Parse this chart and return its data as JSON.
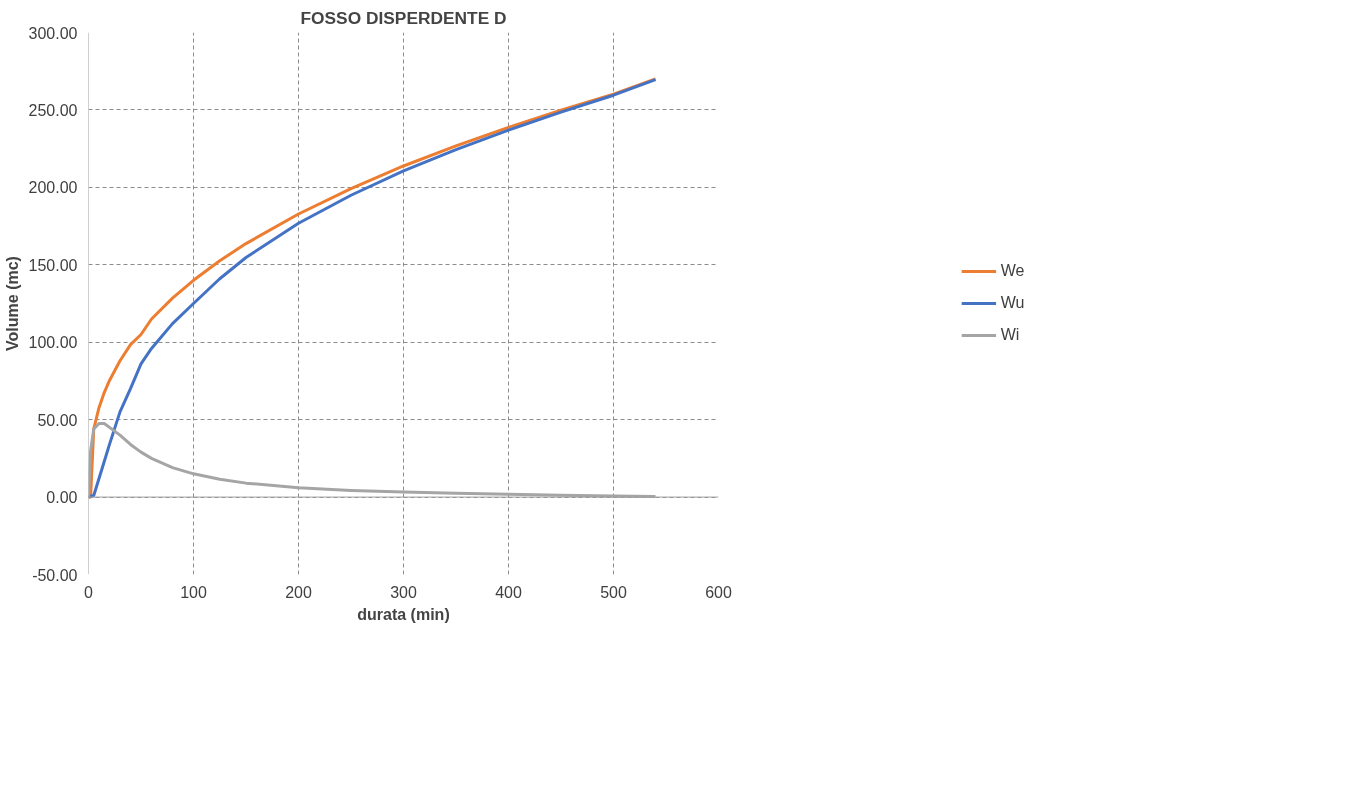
{
  "chart_data": {
    "type": "line",
    "title": "FOSSO DISPERDENTE D",
    "xlabel": "durata (min)",
    "ylabel": "Volume (mc)",
    "x": [
      0,
      2,
      5,
      10,
      15,
      20,
      30,
      40,
      50,
      60,
      80,
      100,
      125,
      150,
      200,
      250,
      300,
      350,
      400,
      450,
      500,
      540
    ],
    "series": [
      {
        "name": "We",
        "color": "#ed7d31",
        "values": [
          0,
          null,
          44,
          57.7,
          67.5,
          75.3,
          88,
          98.4,
          105,
          115,
          128.5,
          140,
          152.6,
          163.7,
          182.8,
          199.2,
          213.8,
          226.8,
          238.7,
          249.8,
          260.2,
          270
        ]
      },
      {
        "name": "Wu",
        "color": "#4472c4",
        "values": [
          0,
          0.5,
          1,
          12,
          23,
          34,
          55,
          70,
          86,
          96,
          112,
          125,
          141,
          154.7,
          176.8,
          194.9,
          210.6,
          224.4,
          236.9,
          248.6,
          259.5,
          269.6
        ]
      },
      {
        "name": "Wi",
        "color": "#a5a5a5",
        "values": [
          0,
          30,
          44,
          47.5,
          47.5,
          45,
          40,
          34,
          29,
          25,
          19,
          15,
          11.5,
          9,
          6,
          4.3,
          3.2,
          2.4,
          1.8,
          1.2,
          0.7,
          0.4
        ]
      }
    ],
    "xlim": [
      0,
      600
    ],
    "xticks": [
      0,
      100,
      200,
      300,
      400,
      500,
      600
    ],
    "ylim": [
      -50,
      300
    ],
    "yticks": [
      {
        "value": -50,
        "label": "-50.00"
      },
      {
        "value": 0,
        "label": "0.00"
      },
      {
        "value": 50,
        "label": "50.00"
      },
      {
        "value": 100,
        "label": "100.00"
      },
      {
        "value": 150,
        "label": "150.00"
      },
      {
        "value": 200,
        "label": "200.00"
      },
      {
        "value": 250,
        "label": "250.00"
      },
      {
        "value": 300,
        "label": "300.00"
      }
    ],
    "grid": true,
    "legend": "right",
    "line_style": "solid"
  }
}
